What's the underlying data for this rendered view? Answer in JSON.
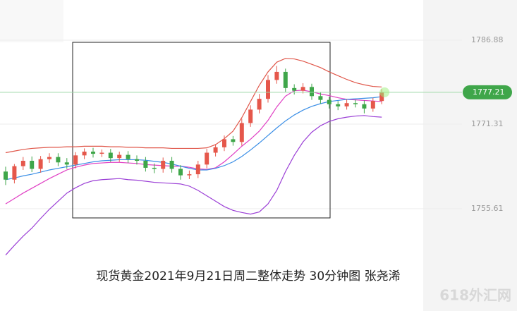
{
  "chart_data": {
    "type": "candlestick",
    "ylim": [
      1736.62,
      1794.34
    ],
    "yticks": [
      1786.88,
      1771.31,
      1755.61
    ],
    "current_price": 1777.21,
    "up_color": "#e5574b",
    "down_color": "#3fa64a",
    "open": [
      1762.5,
      1761.0,
      1763.5,
      1764.5,
      1763.0,
      1764.8,
      1765.2,
      1764.2,
      1763.8,
      1765.5,
      1766.2,
      1765.8,
      1766.0,
      1765.0,
      1765.6,
      1764.8,
      1764.5,
      1763.2,
      1763.0,
      1764.5,
      1763.0,
      1761.8,
      1762.0,
      1763.8,
      1766.0,
      1767.0,
      1768.5,
      1768.0,
      1771.5,
      1774.0,
      1776.0,
      1779.5,
      1781.0,
      1778.0,
      1777.5,
      1778.2,
      1776.5,
      1775.8,
      1775.0,
      1774.6,
      1775.2,
      1775.0,
      1774.2,
      1775.6
    ],
    "high": [
      1763.4,
      1763.9,
      1765.2,
      1765.3,
      1765.4,
      1765.9,
      1765.9,
      1765.0,
      1766.1,
      1766.8,
      1766.9,
      1766.6,
      1766.7,
      1766.2,
      1766.3,
      1765.5,
      1765.2,
      1764.0,
      1765.1,
      1765.2,
      1763.7,
      1762.7,
      1764.5,
      1766.7,
      1767.6,
      1769.2,
      1769.1,
      1772.3,
      1774.8,
      1776.9,
      1780.4,
      1782.1,
      1781.6,
      1778.7,
      1778.9,
      1778.8,
      1777.2,
      1776.4,
      1775.6,
      1775.9,
      1775.8,
      1775.7,
      1776.2,
      1777.8
    ],
    "low": [
      1760.0,
      1760.3,
      1762.8,
      1762.4,
      1762.3,
      1764.1,
      1763.5,
      1763.0,
      1763.1,
      1764.8,
      1765.1,
      1765.2,
      1764.3,
      1764.3,
      1764.1,
      1763.8,
      1762.5,
      1762.2,
      1762.3,
      1762.3,
      1761.0,
      1761.1,
      1761.3,
      1763.1,
      1765.3,
      1766.3,
      1767.3,
      1767.3,
      1770.8,
      1773.3,
      1775.3,
      1778.8,
      1777.3,
      1776.8,
      1777.0,
      1775.8,
      1775.1,
      1774.2,
      1773.9,
      1774.0,
      1774.4,
      1773.3,
      1773.6,
      1775.0
    ],
    "close": [
      1761.0,
      1763.5,
      1764.5,
      1763.0,
      1764.8,
      1765.2,
      1764.2,
      1763.8,
      1765.5,
      1766.2,
      1765.8,
      1766.0,
      1765.0,
      1765.6,
      1764.8,
      1764.5,
      1763.2,
      1763.0,
      1764.5,
      1763.0,
      1761.8,
      1762.0,
      1763.8,
      1766.0,
      1767.0,
      1768.5,
      1768.0,
      1771.5,
      1774.0,
      1776.0,
      1779.5,
      1781.0,
      1778.0,
      1777.5,
      1778.2,
      1776.5,
      1775.8,
      1775.0,
      1774.6,
      1775.2,
      1775.0,
      1774.2,
      1775.6,
      1777.2
    ],
    "lines": [
      {
        "color": "#e0574a",
        "values": [
          1766.0,
          1766.3,
          1766.6,
          1766.8,
          1766.9,
          1767.0,
          1767.0,
          1767.1,
          1767.1,
          1767.2,
          1767.2,
          1767.2,
          1767.1,
          1767.1,
          1767.0,
          1767.0,
          1766.9,
          1766.9,
          1766.9,
          1766.8,
          1766.8,
          1766.8,
          1766.8,
          1766.9,
          1767.5,
          1768.6,
          1770.0,
          1772.5,
          1775.5,
          1778.5,
          1781.0,
          1782.8,
          1783.5,
          1783.4,
          1783.0,
          1782.4,
          1781.8,
          1781.0,
          1780.3,
          1779.6,
          1779.0,
          1778.6,
          1778.3,
          1778.2
        ]
      },
      {
        "color": "#9b3fd6",
        "values": [
          1747.0,
          1748.8,
          1750.5,
          1752.0,
          1753.8,
          1755.5,
          1757.0,
          1758.5,
          1759.5,
          1760.3,
          1760.8,
          1761.0,
          1761.1,
          1761.2,
          1761.0,
          1760.9,
          1760.7,
          1760.5,
          1760.4,
          1760.3,
          1760.2,
          1759.8,
          1759.0,
          1758.0,
          1757.0,
          1756.0,
          1755.3,
          1754.9,
          1754.6,
          1755.0,
          1756.5,
          1759.0,
          1762.5,
          1765.5,
          1768.0,
          1769.8,
          1771.0,
          1771.8,
          1772.3,
          1772.6,
          1772.8,
          1772.9,
          1772.7,
          1772.6
        ]
      },
      {
        "color": "#e03fc4",
        "values": [
          1756.5,
          1757.5,
          1758.5,
          1759.4,
          1760.3,
          1761.2,
          1762.0,
          1762.8,
          1763.3,
          1763.7,
          1764.0,
          1764.1,
          1764.2,
          1764.2,
          1764.1,
          1764.0,
          1763.8,
          1763.7,
          1763.6,
          1763.5,
          1763.5,
          1763.3,
          1763.0,
          1762.9,
          1763.2,
          1764.3,
          1765.7,
          1767.2,
          1768.5,
          1770.0,
          1772.0,
          1774.5,
          1776.5,
          1777.5,
          1777.6,
          1777.3,
          1776.9,
          1776.6,
          1776.2,
          1775.9,
          1775.8,
          1775.7,
          1775.6,
          1775.5
        ]
      },
      {
        "color": "#3a8ee6",
        "values": [
          1761.0,
          1761.3,
          1761.7,
          1762.0,
          1762.4,
          1762.8,
          1763.1,
          1763.4,
          1763.7,
          1764.0,
          1764.3,
          1764.5,
          1764.6,
          1764.7,
          1764.7,
          1764.7,
          1764.6,
          1764.4,
          1764.2,
          1763.9,
          1763.5,
          1763.1,
          1762.8,
          1762.8,
          1763.1,
          1763.6,
          1764.3,
          1765.3,
          1766.5,
          1767.8,
          1769.2,
          1770.6,
          1771.9,
          1773.0,
          1773.9,
          1774.6,
          1775.1,
          1775.5,
          1775.7,
          1775.9,
          1776.0,
          1776.1,
          1776.2,
          1776.4
        ]
      }
    ],
    "caption": "现货黄金2021年9月21日周二整体走势 30分钟图  张尧浠",
    "watermark": "618外汇网"
  }
}
